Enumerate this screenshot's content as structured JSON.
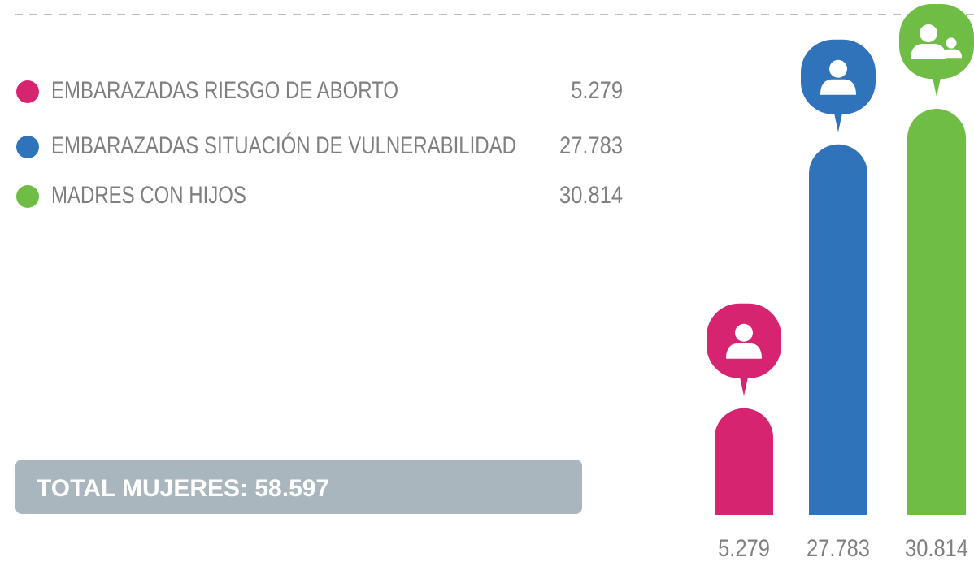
{
  "chart_data": {
    "type": "bar",
    "categories": [
      "EMBARAZADAS RIESGO DE ABORTO",
      "EMBARAZADAS SITUACIÓN DE VULNERABILIDAD",
      "MADRES CON HIJOS"
    ],
    "values": [
      5279,
      27783,
      30814
    ],
    "value_labels": [
      "5.279",
      "27.783",
      "30.814"
    ],
    "colors": [
      "#d62470",
      "#2f74bb",
      "#6fbd44"
    ],
    "total_text": "TOTAL MUJERES: 58.597"
  }
}
